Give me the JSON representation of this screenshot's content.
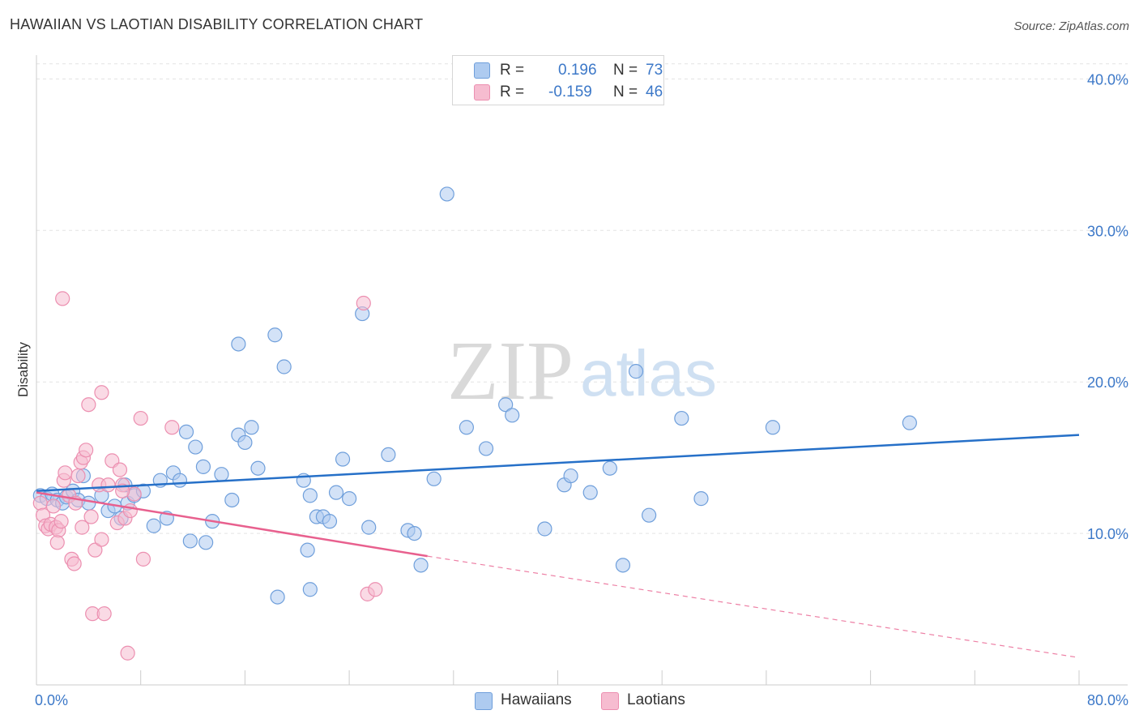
{
  "title": "HAWAIIAN VS LAOTIAN DISABILITY CORRELATION CHART",
  "source": "Source: ZipAtlas.com",
  "watermark": {
    "zip": "ZIP",
    "atlas": "atlas"
  },
  "legend": {
    "r_label": "R =",
    "n_label": "N =",
    "hawaiians": {
      "r": "0.196",
      "n": "73"
    },
    "laotians": {
      "r": "-0.159",
      "n": "46"
    }
  },
  "colors": {
    "hawaiians_fill": "#aecbf0",
    "hawaiians_stroke": "#6f9fdb",
    "hawaiians_line": "#2670c8",
    "laotians_fill": "#f6bcd0",
    "laotians_stroke": "#ec8fb0",
    "laotians_line": "#e8608e",
    "tick_text": "#3c78c8",
    "grid": "#e3e3e3"
  },
  "chart_data": {
    "type": "scatter",
    "ylabel": "Disability",
    "xlabel": "",
    "xlim": [
      0,
      80
    ],
    "ylim": [
      0,
      42
    ],
    "x_tick_labels": [
      "0.0%",
      "80.0%"
    ],
    "y_ticks": [
      10,
      20,
      30,
      40
    ],
    "y_tick_labels": [
      "10.0%",
      "20.0%",
      "30.0%",
      "40.0%"
    ],
    "series": [
      {
        "name": "Hawaiians",
        "trend": {
          "x": [
            0,
            80
          ],
          "y": [
            12.8,
            16.5
          ],
          "style": "solid"
        },
        "points": [
          [
            0.3,
            12.5
          ],
          [
            0.8,
            12.3
          ],
          [
            1.2,
            12.6
          ],
          [
            1.6,
            12.2
          ],
          [
            2.0,
            12.0
          ],
          [
            2.3,
            12.4
          ],
          [
            2.8,
            12.8
          ],
          [
            3.2,
            12.2
          ],
          [
            3.6,
            13.8
          ],
          [
            4.0,
            12.0
          ],
          [
            5.0,
            12.5
          ],
          [
            5.5,
            11.5
          ],
          [
            6.0,
            11.8
          ],
          [
            6.5,
            11.0
          ],
          [
            7.0,
            12.0
          ],
          [
            7.5,
            12.5
          ],
          [
            8.2,
            12.8
          ],
          [
            9.5,
            13.5
          ],
          [
            10.5,
            14.0
          ],
          [
            11.0,
            13.5
          ],
          [
            11.5,
            16.7
          ],
          [
            12.2,
            15.7
          ],
          [
            12.8,
            14.4
          ],
          [
            14.2,
            13.9
          ],
          [
            6.8,
            13.2
          ],
          [
            9.0,
            10.5
          ],
          [
            10.0,
            11.0
          ],
          [
            11.8,
            9.5
          ],
          [
            13.5,
            10.8
          ],
          [
            15.0,
            12.2
          ],
          [
            15.5,
            16.5
          ],
          [
            16.0,
            16.0
          ],
          [
            16.5,
            17.0
          ],
          [
            17.0,
            14.3
          ],
          [
            18.5,
            5.8
          ],
          [
            19.0,
            21.0
          ],
          [
            18.3,
            23.1
          ],
          [
            20.5,
            13.5
          ],
          [
            21.0,
            12.5
          ],
          [
            21.5,
            11.1
          ],
          [
            22.0,
            11.1
          ],
          [
            22.5,
            10.8
          ],
          [
            23.0,
            12.7
          ],
          [
            23.5,
            14.9
          ],
          [
            24.0,
            12.3
          ],
          [
            25.0,
            24.5
          ],
          [
            25.5,
            10.4
          ],
          [
            27.0,
            15.2
          ],
          [
            28.5,
            10.2
          ],
          [
            29.0,
            10.0
          ],
          [
            29.5,
            7.9
          ],
          [
            30.5,
            13.6
          ],
          [
            31.5,
            32.4
          ],
          [
            33.0,
            17.0
          ],
          [
            34.5,
            15.6
          ],
          [
            36.0,
            18.5
          ],
          [
            36.5,
            17.8
          ],
          [
            39.0,
            10.3
          ],
          [
            40.5,
            13.2
          ],
          [
            41.0,
            13.8
          ],
          [
            42.5,
            12.7
          ],
          [
            44.0,
            14.3
          ],
          [
            45.0,
            7.9
          ],
          [
            46.0,
            20.7
          ],
          [
            47.0,
            11.2
          ],
          [
            49.5,
            17.6
          ],
          [
            51.0,
            12.3
          ],
          [
            56.5,
            17.0
          ],
          [
            67.0,
            17.3
          ],
          [
            13.0,
            9.4
          ],
          [
            20.8,
            8.9
          ],
          [
            21.0,
            6.3
          ],
          [
            15.5,
            22.5
          ]
        ]
      },
      {
        "name": "Laotians",
        "trend": {
          "x": [
            0,
            30
          ],
          "y": [
            12.7,
            8.5
          ],
          "style": "solid",
          "extended": {
            "x": [
              30,
              80
            ],
            "y": [
              8.5,
              1.8
            ],
            "style": "dashed"
          }
        },
        "points": [
          [
            0.3,
            12.0
          ],
          [
            0.5,
            11.2
          ],
          [
            0.7,
            10.5
          ],
          [
            0.9,
            10.3
          ],
          [
            1.1,
            10.6
          ],
          [
            1.3,
            11.8
          ],
          [
            1.5,
            10.4
          ],
          [
            1.7,
            10.2
          ],
          [
            1.9,
            10.8
          ],
          [
            2.1,
            13.5
          ],
          [
            2.2,
            14.0
          ],
          [
            2.5,
            12.5
          ],
          [
            2.7,
            8.3
          ],
          [
            2.9,
            8.0
          ],
          [
            3.0,
            12.0
          ],
          [
            3.2,
            13.8
          ],
          [
            3.4,
            14.7
          ],
          [
            3.6,
            15.0
          ],
          [
            3.8,
            15.5
          ],
          [
            4.0,
            18.5
          ],
          [
            4.3,
            4.7
          ],
          [
            4.5,
            8.9
          ],
          [
            4.8,
            13.2
          ],
          [
            5.0,
            19.3
          ],
          [
            5.2,
            4.7
          ],
          [
            5.5,
            13.2
          ],
          [
            5.8,
            14.8
          ],
          [
            6.2,
            10.7
          ],
          [
            6.4,
            14.2
          ],
          [
            6.6,
            13.2
          ],
          [
            6.8,
            11.0
          ],
          [
            7.0,
            2.1
          ],
          [
            8.0,
            17.6
          ],
          [
            8.2,
            8.3
          ],
          [
            10.4,
            17.0
          ],
          [
            25.1,
            25.2
          ],
          [
            25.4,
            6.0
          ],
          [
            26.0,
            6.3
          ],
          [
            7.2,
            11.5
          ],
          [
            7.5,
            12.6
          ],
          [
            1.6,
            9.4
          ],
          [
            3.5,
            10.4
          ],
          [
            4.2,
            11.1
          ],
          [
            5.0,
            9.6
          ],
          [
            6.6,
            12.8
          ],
          [
            2.0,
            25.5
          ]
        ]
      }
    ]
  },
  "bottom_legend": {
    "hawaiians": "Hawaiians",
    "laotians": "Laotians"
  }
}
